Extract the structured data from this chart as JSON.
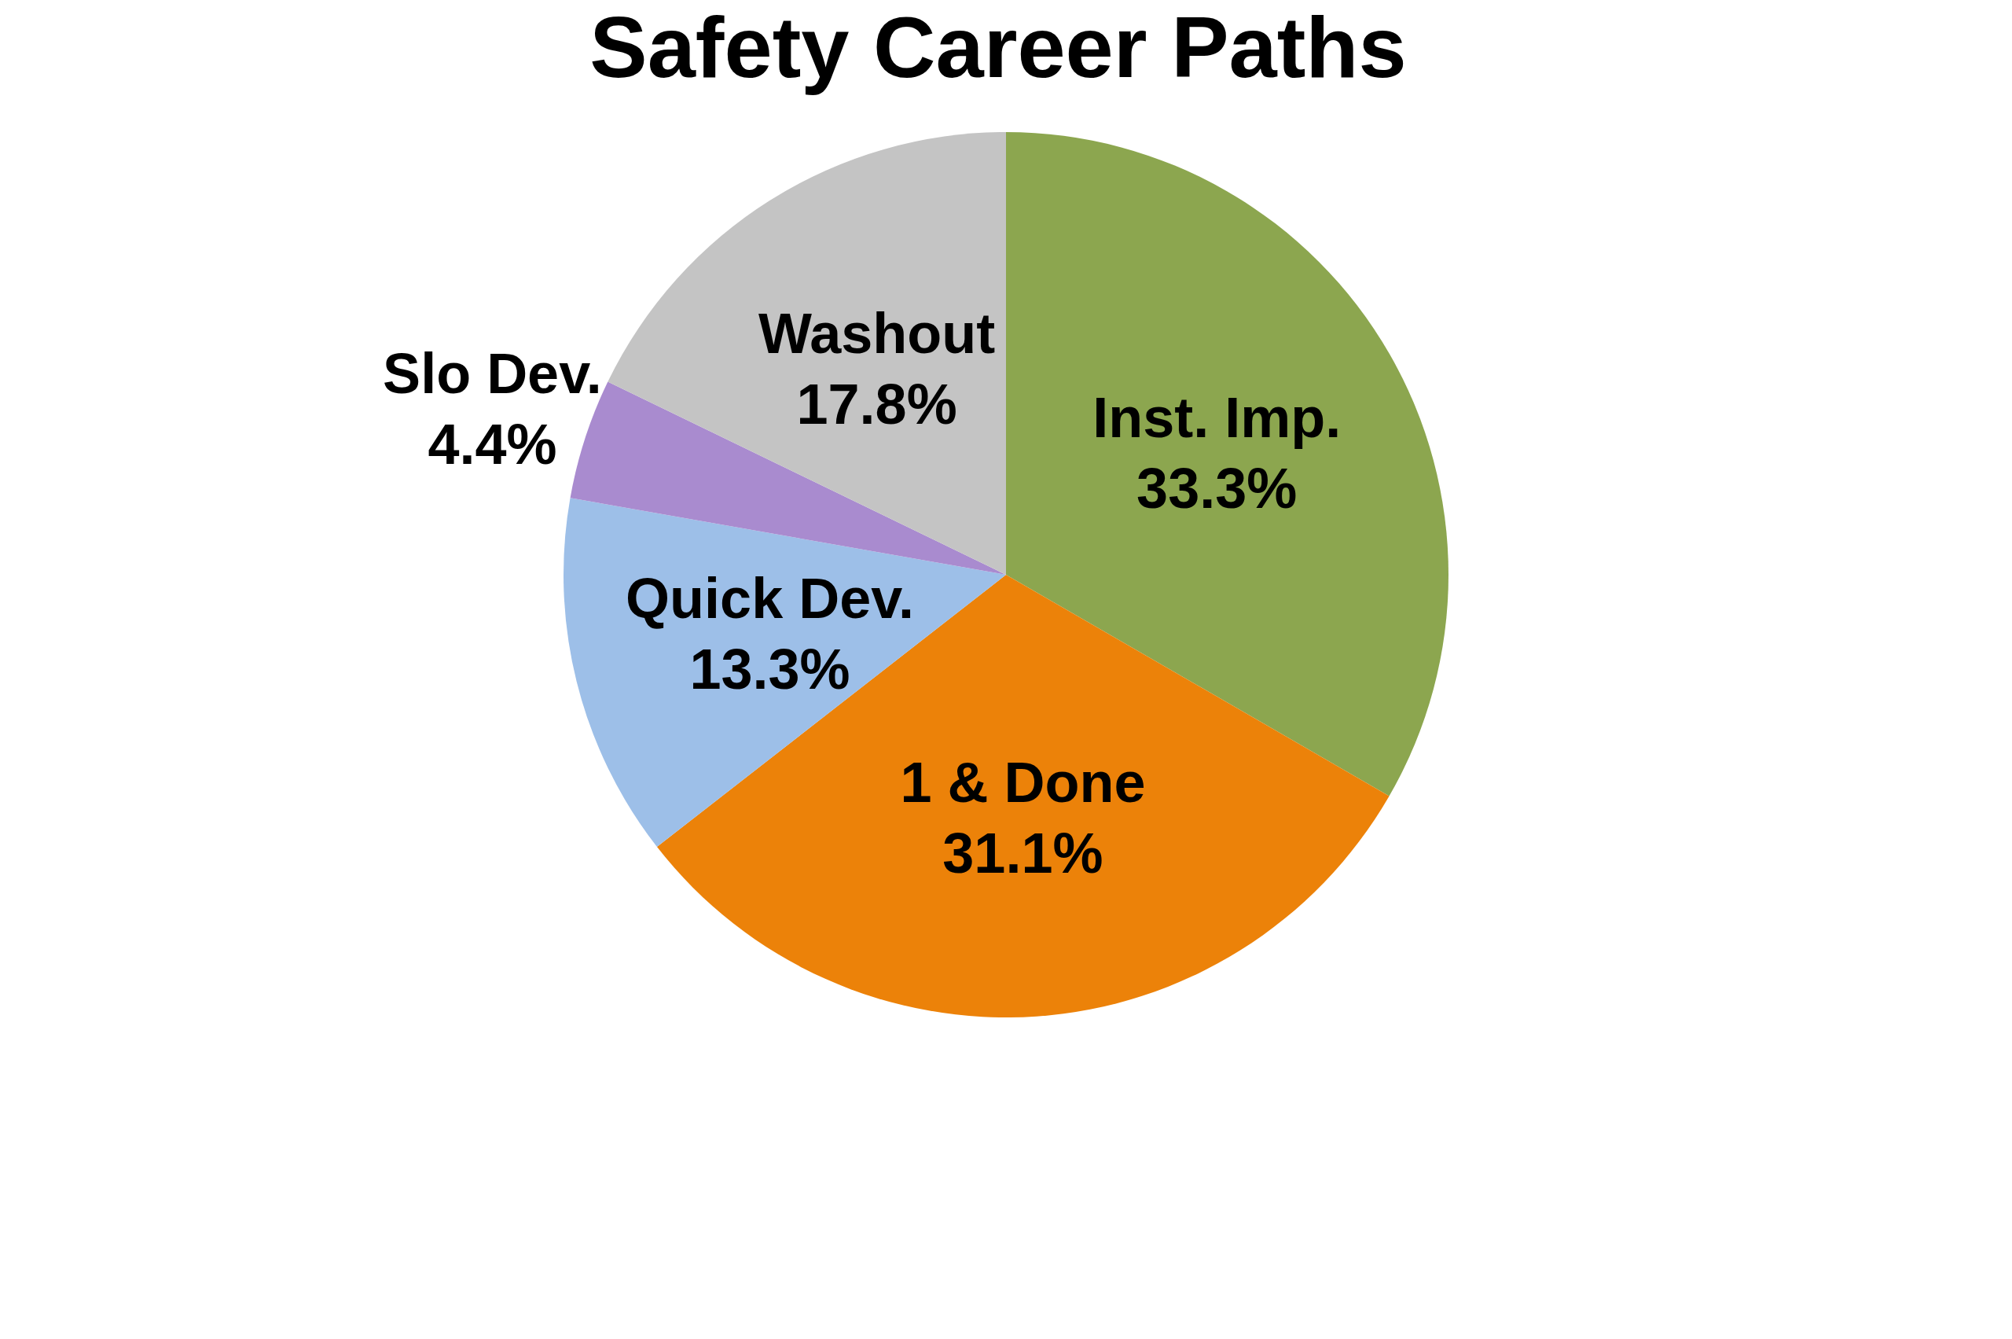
{
  "chart_data": {
    "type": "pie",
    "title": "Safety Career Paths",
    "categories": [
      "Inst. Imp.",
      "1 & Done",
      "Quick Dev.",
      "Slo Dev.",
      "Washout"
    ],
    "values": [
      33.3,
      31.1,
      13.3,
      4.4,
      17.8
    ],
    "value_labels": [
      "33.3%",
      "31.1%",
      "13.3%",
      "4.4%",
      "17.8%"
    ],
    "colors": [
      "#8ca64f",
      "#ec8209",
      "#9dbfe8",
      "#a98bcf",
      "#c4c4c4"
    ]
  }
}
